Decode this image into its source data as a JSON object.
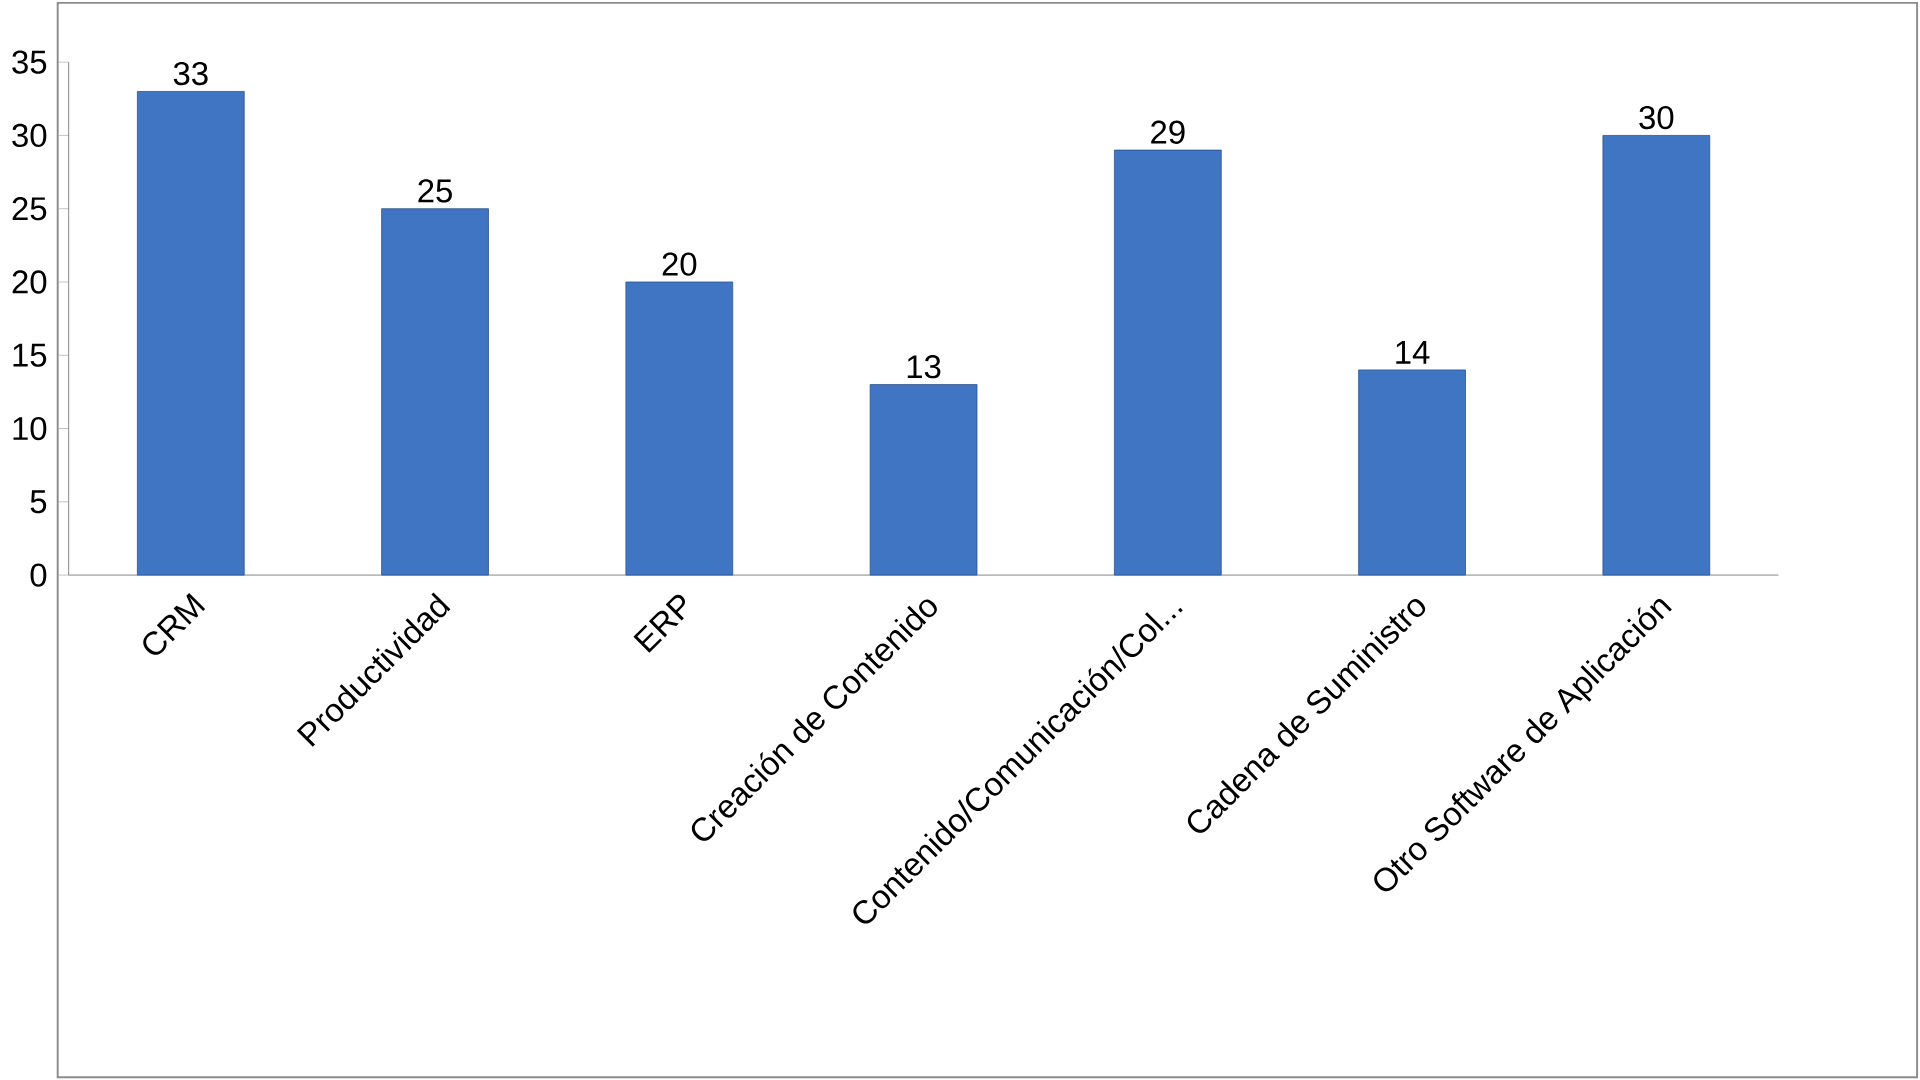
{
  "chart_data": {
    "type": "bar",
    "categories": [
      "CRM",
      "Productividad",
      "ERP",
      "Creación de Contenido",
      "Contenido/Comunicación/Col...",
      "Cadena de Suministro",
      "Otro Software de Aplicación"
    ],
    "values": [
      33,
      25,
      20,
      13,
      29,
      14,
      30
    ],
    "color": "#3f75c2",
    "ylim": [
      0,
      35
    ],
    "yticks": [
      0,
      5,
      10,
      15,
      20,
      25,
      30,
      35
    ],
    "data_labels": true
  }
}
